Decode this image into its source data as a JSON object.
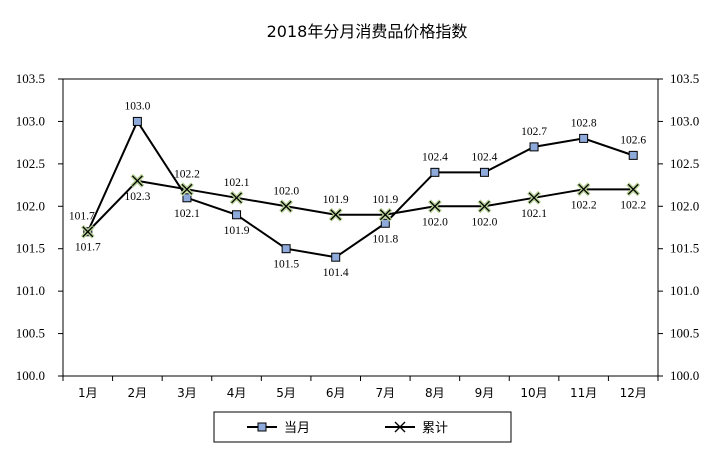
{
  "chart_data": {
    "type": "line",
    "title": "2018年分月消费品价格指数",
    "categories": [
      "1月",
      "2月",
      "3月",
      "4月",
      "5月",
      "6月",
      "7月",
      "8月",
      "9月",
      "10月",
      "11月",
      "12月"
    ],
    "series": [
      {
        "name": "当月",
        "marker": "square",
        "color": "#000000",
        "marker_fill": "#8eaadb",
        "values": [
          101.7,
          103.0,
          102.1,
          101.9,
          101.5,
          101.4,
          101.8,
          102.4,
          102.4,
          102.7,
          102.8,
          102.6
        ]
      },
      {
        "name": "累计",
        "marker": "x",
        "color": "#000000",
        "marker_fill": "#b5cf94",
        "values": [
          101.7,
          102.3,
          102.2,
          102.1,
          102.0,
          101.9,
          101.9,
          102.0,
          102.0,
          102.1,
          102.2,
          102.2
        ]
      }
    ],
    "ylim": [
      100.0,
      103.5
    ],
    "yticks": [
      "100.0",
      "100.5",
      "101.0",
      "101.5",
      "102.0",
      "102.5",
      "103.0",
      "103.5"
    ],
    "secondary_y": true,
    "grid": false,
    "legend": "bottom"
  }
}
